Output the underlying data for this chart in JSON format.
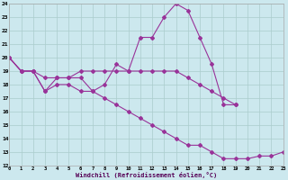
{
  "xlabel": "Windchill (Refroidissement éolien,°C)",
  "background_color": "#cce8ee",
  "line_color": "#993399",
  "grid_color": "#aacccc",
  "xmin": 0,
  "xmax": 23,
  "ymin": 12,
  "ymax": 24,
  "line1_x": [
    0,
    1,
    2,
    3,
    4,
    5,
    6,
    7,
    8,
    9,
    10,
    11,
    12,
    13,
    14,
    15,
    16,
    17,
    18,
    19
  ],
  "line1_y": [
    20.0,
    19.0,
    19.0,
    17.5,
    18.5,
    18.5,
    18.5,
    17.5,
    18.0,
    19.5,
    19.0,
    21.5,
    21.5,
    23.0,
    24.0,
    23.5,
    21.5,
    19.5,
    16.5,
    16.5
  ],
  "line2_x": [
    0,
    1,
    2,
    3,
    4,
    5,
    6,
    7,
    8,
    9,
    10,
    11,
    12,
    13,
    14,
    15,
    16,
    17,
    18,
    19
  ],
  "line2_y": [
    20.0,
    19.0,
    19.0,
    18.5,
    18.5,
    18.5,
    19.0,
    19.0,
    19.0,
    19.0,
    19.0,
    19.0,
    19.0,
    19.0,
    19.0,
    18.5,
    18.0,
    17.5,
    17.0,
    16.5
  ],
  "line3_x": [
    0,
    1,
    2,
    3,
    4,
    5,
    6,
    7,
    8,
    9,
    10,
    11,
    12,
    13,
    14,
    15,
    16,
    17,
    18,
    19,
    20,
    21,
    22,
    23
  ],
  "line3_y": [
    20.0,
    19.0,
    19.0,
    17.5,
    18.0,
    18.0,
    17.5,
    17.5,
    17.0,
    16.5,
    16.0,
    15.5,
    15.0,
    14.5,
    14.0,
    13.5,
    13.5,
    13.0,
    12.5,
    12.5,
    12.5,
    12.7,
    12.7,
    13.0
  ]
}
